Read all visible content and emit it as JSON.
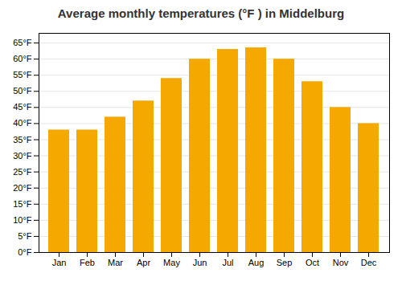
{
  "chart_data": {
    "type": "bar",
    "title": "Average monthly temperatures (°F ) in Middelburg",
    "categories": [
      "Jan",
      "Feb",
      "Mar",
      "Apr",
      "May",
      "Jun",
      "Jul",
      "Aug",
      "Sep",
      "Oct",
      "Nov",
      "Dec"
    ],
    "values": [
      38,
      38,
      42,
      47,
      54,
      60,
      63,
      63.5,
      60,
      53,
      45,
      40
    ],
    "color": "#F5A800",
    "ylim": [
      0,
      68
    ],
    "yticks": [
      {
        "value": 0,
        "label": "0°F"
      },
      {
        "value": 5,
        "label": "5°F"
      },
      {
        "value": 10,
        "label": "10°F"
      },
      {
        "value": 15,
        "label": "15°F"
      },
      {
        "value": 20,
        "label": "20°F"
      },
      {
        "value": 25,
        "label": "25°F"
      },
      {
        "value": 30,
        "label": "30°F"
      },
      {
        "value": 35,
        "label": "35°F"
      },
      {
        "value": 40,
        "label": "40°F"
      },
      {
        "value": 45,
        "label": "45°F"
      },
      {
        "value": 50,
        "label": "50°F"
      },
      {
        "value": 55,
        "label": "55°F"
      },
      {
        "value": 60,
        "label": "60°F"
      },
      {
        "value": 65,
        "label": "65°F"
      }
    ],
    "grid": true
  }
}
